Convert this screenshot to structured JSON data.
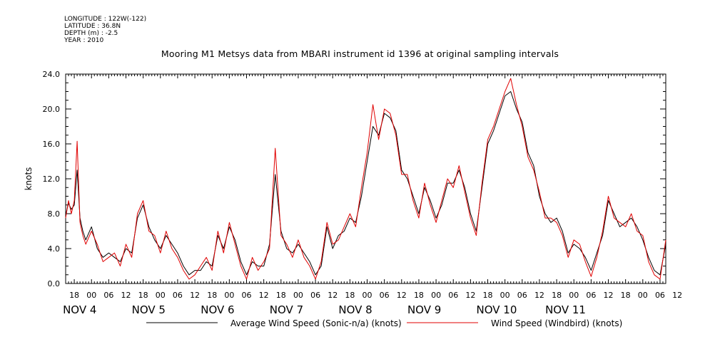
{
  "header": {
    "longitude": "LONGITUDE : 122W(-122)",
    "latitude": "LATITUDE : 36.8N",
    "depth": "DEPTH (m) : -2.5",
    "year": "YEAR : 2010"
  },
  "chart_data": {
    "type": "line",
    "title": "Mooring M1 Metsys data from MBARI instrument id 1396 at original sampling intervals",
    "ylabel": "knots",
    "xlabel": "",
    "ylim": [
      0,
      24
    ],
    "xlim_hours": [
      -9,
      200
    ],
    "y_ticks": [
      "0.0",
      "4.0",
      "8.0",
      "12.0",
      "16.0",
      "20.0",
      "24.0"
    ],
    "x_hour_labels": [
      "18",
      "00",
      "06",
      "12",
      "18",
      "00",
      "06",
      "12",
      "18",
      "00",
      "06",
      "12",
      "18",
      "00",
      "06",
      "12",
      "18",
      "00",
      "06",
      "12",
      "18",
      "00",
      "06",
      "12",
      "18",
      "00",
      "06",
      "12",
      "18",
      "00",
      "06",
      "12",
      "18",
      "00",
      "06",
      "12"
    ],
    "day_labels": [
      "NOV  4",
      "NOV  5",
      "NOV  6",
      "NOV  7",
      "NOV  8",
      "NOV  9",
      "NOV 10",
      "NOV 11"
    ],
    "grid": false,
    "legend_position": "bottom",
    "colors": {
      "series1": "#000000",
      "series2": "#e00000"
    },
    "series": [
      {
        "name": "Average Wind Speed (Sonic-n/a) (knots)",
        "x": [
          -9,
          -8,
          -7,
          -6,
          -5,
          -4,
          -3,
          -2,
          0,
          2,
          4,
          6,
          8,
          10,
          12,
          14,
          16,
          18,
          20,
          22,
          24,
          26,
          28,
          30,
          32,
          34,
          36,
          38,
          40,
          42,
          44,
          46,
          48,
          50,
          52,
          54,
          56,
          58,
          60,
          62,
          64,
          66,
          68,
          70,
          72,
          74,
          76,
          78,
          80,
          82,
          84,
          86,
          88,
          90,
          92,
          94,
          96,
          98,
          100,
          102,
          104,
          106,
          108,
          110,
          112,
          114,
          116,
          118,
          120,
          122,
          124,
          126,
          128,
          130,
          132,
          134,
          136,
          138,
          140,
          142,
          144,
          146,
          148,
          150,
          152,
          154,
          156,
          158,
          160,
          162,
          164,
          166,
          168,
          170,
          172,
          174,
          176,
          178,
          180,
          182,
          184,
          186,
          188,
          190,
          192,
          194,
          196,
          198,
          200
        ],
        "y": [
          7.8,
          9.2,
          8.5,
          9.0,
          13.0,
          7.5,
          6.0,
          5.0,
          6.5,
          4.0,
          3.0,
          3.5,
          3.0,
          2.5,
          4.0,
          3.5,
          7.5,
          9.0,
          6.5,
          5.0,
          4.0,
          5.5,
          4.5,
          3.5,
          2.0,
          1.0,
          1.5,
          1.5,
          2.5,
          2.0,
          5.5,
          4.0,
          6.5,
          5.0,
          2.5,
          1.0,
          2.5,
          2.0,
          2.0,
          4.5,
          12.5,
          6.0,
          4.0,
          3.5,
          4.5,
          3.5,
          2.5,
          1.0,
          2.0,
          6.5,
          4.0,
          5.5,
          6.0,
          7.5,
          7.0,
          10.0,
          14.0,
          18.0,
          17.0,
          19.5,
          19.0,
          17.5,
          13.0,
          12.0,
          10.0,
          8.0,
          11.0,
          9.5,
          7.5,
          9.0,
          11.5,
          11.5,
          13.0,
          11.0,
          8.0,
          6.0,
          11.0,
          16.0,
          17.5,
          19.5,
          21.5,
          22.0,
          20.0,
          18.5,
          15.0,
          13.5,
          10.0,
          8.0,
          7.0,
          7.5,
          6.0,
          3.5,
          4.5,
          4.0,
          3.0,
          1.5,
          3.5,
          5.5,
          9.5,
          8.0,
          6.5,
          7.0,
          7.5,
          6.5,
          5.0,
          3.0,
          1.5,
          1.0,
          4.5
        ]
      },
      {
        "name": "Wind Speed (Windbird) (knots)",
        "x": [
          -9,
          -8,
          -7,
          -6,
          -5,
          -4,
          -3,
          -2,
          0,
          2,
          4,
          6,
          8,
          10,
          12,
          14,
          16,
          18,
          20,
          22,
          24,
          26,
          28,
          30,
          32,
          34,
          36,
          38,
          40,
          42,
          44,
          46,
          48,
          50,
          52,
          54,
          56,
          58,
          60,
          62,
          64,
          66,
          68,
          70,
          72,
          74,
          76,
          78,
          80,
          82,
          84,
          86,
          88,
          90,
          92,
          94,
          96,
          98,
          100,
          102,
          104,
          106,
          108,
          110,
          112,
          114,
          116,
          118,
          120,
          122,
          124,
          126,
          128,
          130,
          132,
          134,
          136,
          138,
          140,
          142,
          144,
          146,
          148,
          150,
          152,
          154,
          156,
          158,
          160,
          162,
          164,
          166,
          168,
          170,
          172,
          174,
          176,
          178,
          180,
          182,
          184,
          186,
          188,
          190,
          192,
          194,
          196,
          198,
          200
        ],
        "y": [
          7.5,
          9.5,
          8.0,
          9.5,
          16.3,
          7.0,
          5.5,
          4.5,
          6.0,
          4.5,
          2.5,
          3.0,
          3.5,
          2.0,
          4.5,
          3.0,
          8.0,
          9.5,
          6.0,
          5.5,
          3.5,
          6.0,
          4.0,
          3.0,
          1.5,
          0.5,
          1.0,
          2.0,
          3.0,
          1.5,
          6.0,
          3.5,
          7.0,
          4.5,
          2.0,
          0.5,
          3.0,
          1.5,
          2.5,
          4.0,
          15.5,
          5.5,
          4.5,
          3.0,
          5.0,
          3.0,
          2.0,
          0.5,
          2.5,
          7.0,
          4.5,
          5.0,
          6.5,
          8.0,
          6.5,
          11.0,
          15.0,
          20.5,
          16.5,
          20.0,
          19.5,
          17.0,
          12.5,
          12.5,
          9.5,
          7.5,
          11.5,
          9.0,
          7.0,
          9.5,
          12.0,
          11.0,
          13.5,
          10.5,
          7.5,
          5.5,
          11.5,
          16.5,
          18.0,
          20.0,
          22.0,
          23.5,
          20.5,
          18.0,
          14.5,
          13.0,
          10.5,
          7.5,
          7.5,
          7.0,
          5.5,
          3.0,
          5.0,
          4.5,
          2.5,
          0.8,
          3.0,
          6.0,
          10.0,
          7.5,
          7.0,
          6.5,
          8.0,
          6.0,
          5.5,
          2.5,
          1.0,
          0.5,
          5.0
        ]
      }
    ]
  }
}
